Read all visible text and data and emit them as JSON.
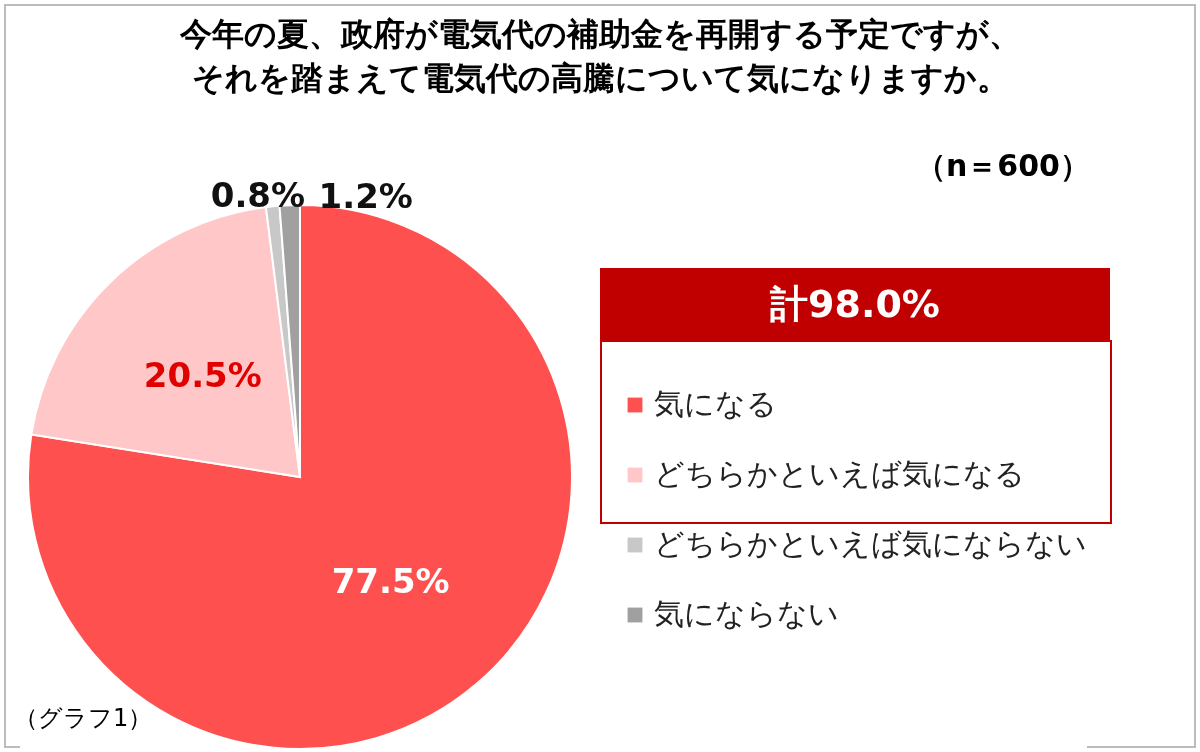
{
  "chart_data": {
    "type": "pie",
    "title": "今年の夏、政府が電気代の補助金を再開する予定ですが、それを踏まえて電気代の高騰について気になりますか。",
    "subtitle": "（n＝600）",
    "categories": [
      "気になる",
      "どちらかといえば気になる",
      "どちらかといえば気にならない",
      "気にならない"
    ],
    "values": [
      77.5,
      20.5,
      0.8,
      1.2
    ],
    "colors": [
      "#ff5050",
      "#ffc7c7",
      "#c8c8c8",
      "#a0a0a0"
    ],
    "value_labels": [
      "77.5%",
      "20.5%",
      "0.8%",
      "1.2%"
    ],
    "legend": "right",
    "annotations": [
      "計98.0%",
      "（グラフ1）"
    ]
  }
}
